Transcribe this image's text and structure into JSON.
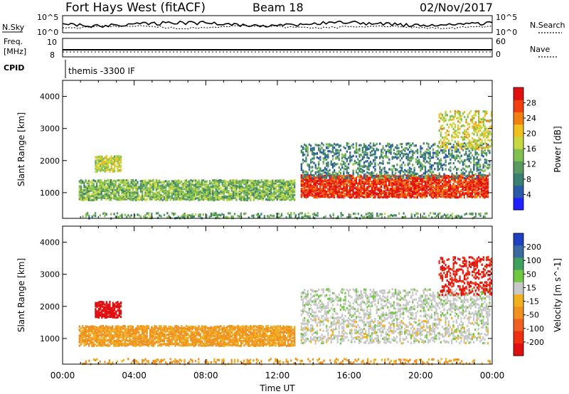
{
  "header": {
    "station": "Fort Hays West (fitACF)",
    "beam": "Beam 18",
    "date": "02/Nov/2017"
  },
  "strip_labels": {
    "nsky": "N.Sky",
    "nsearch": "N.Search",
    "freq_line1": "Freq.",
    "freq_line2": "[MHz]",
    "nave": "Nave",
    "cpid": "CPID",
    "cpid_value": "themis -3300 IF",
    "noise_ticks_left": [
      "10^5",
      "10^0"
    ],
    "noise_ticks_right": [
      "10^5",
      "10^0"
    ],
    "freq_ticks_left": [
      "10",
      "8"
    ],
    "nave_ticks_right": [
      "60",
      "0"
    ]
  },
  "chart_data": [
    {
      "type": "heatmap",
      "panel": "power",
      "ylabel": "Slant Range [km]",
      "xlabel": "Time UT",
      "ylim": [
        200,
        4500
      ],
      "yticks": [
        1000,
        2000,
        3000,
        4000
      ],
      "xticks": [
        "00:00",
        "04:00",
        "08:00",
        "12:00",
        "16:00",
        "20:00",
        "00:00"
      ],
      "colorbar": {
        "label": "Power [dB]",
        "ticks": [
          "28",
          "24",
          "20",
          "16",
          "12",
          "8",
          "4"
        ],
        "colors": [
          "#2020ff",
          "#2a5aa8",
          "#3a8070",
          "#5a9a60",
          "#80c050",
          "#c8d840",
          "#f0c020",
          "#f08010",
          "#f04010",
          "#e01010"
        ]
      },
      "regions": [
        {
          "t0": 0.9,
          "t1": 13.0,
          "r0": 820,
          "r1": 1450,
          "db": 14,
          "label": "near-range band"
        },
        {
          "t0": 1.8,
          "t1": 3.3,
          "r0": 1700,
          "r1": 2200,
          "db": 17,
          "label": "early arc"
        },
        {
          "t0": 13.3,
          "t1": 23.8,
          "r0": 900,
          "r1": 1600,
          "db": 27,
          "label": "strong band"
        },
        {
          "t0": 13.3,
          "t1": 23.9,
          "r0": 1500,
          "r1": 2600,
          "db": 10,
          "label": "upper scatter"
        },
        {
          "t0": 21.0,
          "t1": 24.0,
          "r0": 2400,
          "r1": 3600,
          "db": 18,
          "label": "late high range"
        },
        {
          "t0": 1.0,
          "t1": 24.0,
          "r0": 250,
          "r1": 420,
          "db": 12,
          "label": "ground clutter"
        }
      ]
    },
    {
      "type": "heatmap",
      "panel": "velocity",
      "ylabel": "Slant Range [km]",
      "xlabel": "Time UT",
      "ylim": [
        200,
        4500
      ],
      "yticks": [
        1000,
        2000,
        3000,
        4000
      ],
      "xticks": [
        "00:00",
        "04:00",
        "08:00",
        "12:00",
        "16:00",
        "20:00",
        "00:00"
      ],
      "colorbar": {
        "label": "Velocity [m s^-1]",
        "ticks": [
          "200",
          "100",
          "50",
          "15",
          "-15",
          "-50",
          "-100",
          "-200"
        ],
        "colors": [
          "#2040c0",
          "#3a6aa0",
          "#40a060",
          "#70c840",
          "#c8c8c8",
          "#f0b020",
          "#f09020",
          "#f06020",
          "#f03010",
          "#e01010"
        ]
      },
      "regions": [
        {
          "t0": 0.9,
          "t1": 13.0,
          "r0": 820,
          "r1": 1450,
          "v": -40,
          "label": "near-range band"
        },
        {
          "t0": 1.8,
          "t1": 3.3,
          "r0": 1700,
          "r1": 2200,
          "v": -180,
          "label": "early arc"
        },
        {
          "t0": 13.3,
          "t1": 23.8,
          "r0": 900,
          "r1": 1700,
          "v": 0,
          "label": "ground-scatter band"
        },
        {
          "t0": 13.3,
          "t1": 23.9,
          "r0": 1700,
          "r1": 2600,
          "v": 5,
          "label": "upper scatter"
        },
        {
          "t0": 21.0,
          "t1": 24.0,
          "r0": 2400,
          "r1": 3600,
          "v": -160,
          "label": "late high range"
        },
        {
          "t0": 1.0,
          "t1": 24.0,
          "r0": 250,
          "r1": 420,
          "v": -40,
          "label": "ground clutter"
        }
      ]
    }
  ]
}
